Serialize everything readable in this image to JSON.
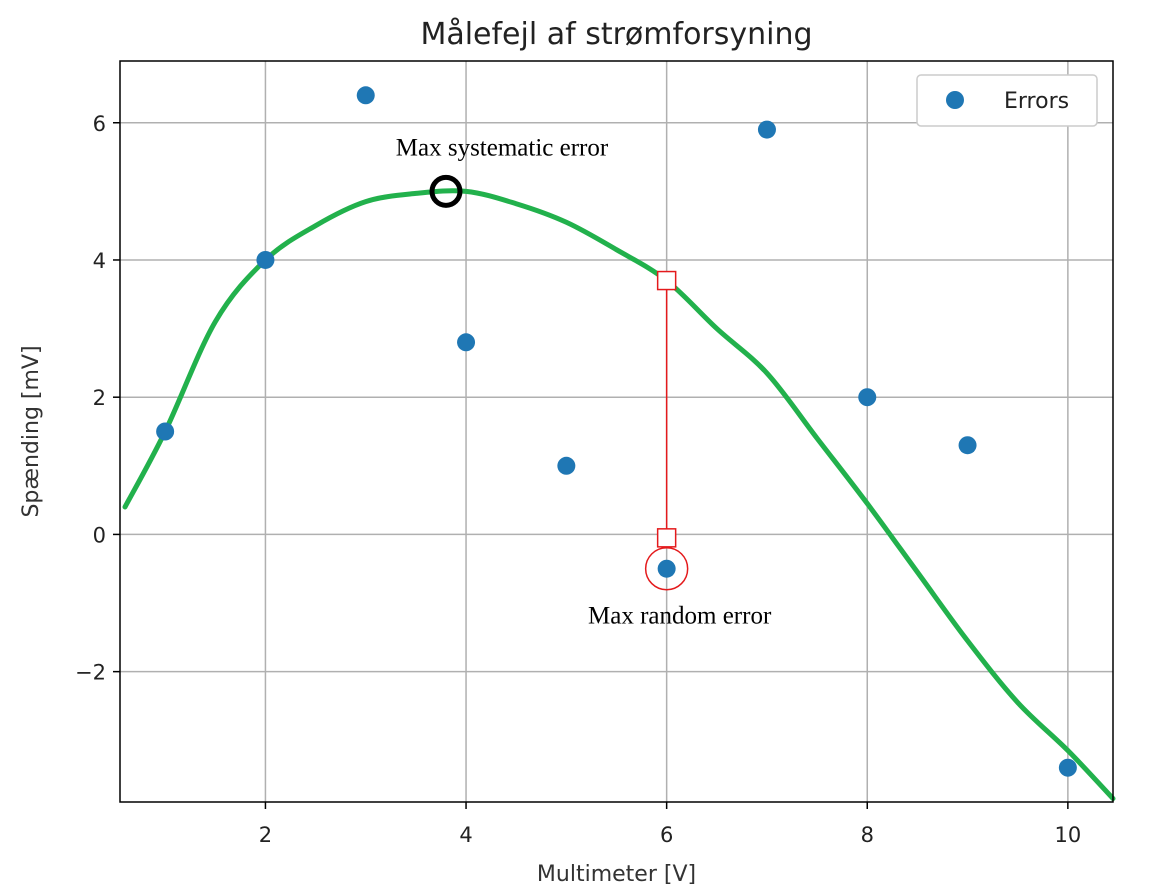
{
  "chart_data": {
    "type": "scatter",
    "title": "Målefejl af strømforsyning",
    "xlabel": "Multimeter [V]",
    "ylabel": "Spænding [mV]",
    "xlim": [
      0.55,
      10.45
    ],
    "ylim": [
      -3.9,
      6.9
    ],
    "xticks": [
      2,
      4,
      6,
      8,
      10
    ],
    "xtick_labels": [
      "2",
      "4",
      "6",
      "8",
      "10"
    ],
    "yticks": [
      -2,
      0,
      2,
      4,
      6
    ],
    "ytick_labels": [
      "−2",
      "0",
      "2",
      "4",
      "6"
    ],
    "grid": true,
    "legend": {
      "position": "top-right",
      "entries": [
        "Errors"
      ]
    },
    "series": [
      {
        "name": "Errors",
        "color": "#1f77b4",
        "x": [
          1,
          2,
          3,
          4,
          5,
          6,
          7,
          8,
          9,
          10
        ],
        "y": [
          1.5,
          4.0,
          6.4,
          2.8,
          1.0,
          -0.5,
          5.9,
          2.0,
          1.3,
          -3.4
        ]
      }
    ],
    "trend_curve": {
      "color": "#22b14c",
      "x": [
        0.6,
        1.0,
        1.5,
        2.0,
        2.5,
        3.0,
        3.5,
        4.0,
        4.5,
        5.0,
        5.5,
        6.0,
        6.5,
        7.0,
        7.5,
        8.0,
        8.5,
        9.0,
        9.5,
        10.0,
        10.45
      ],
      "y": [
        0.4,
        1.5,
        3.1,
        4.0,
        4.5,
        4.85,
        4.97,
        5.0,
        4.82,
        4.55,
        4.15,
        3.7,
        3.0,
        2.35,
        1.4,
        0.45,
        -0.55,
        -1.55,
        -2.45,
        -3.15,
        -3.85
      ]
    },
    "annotations": [
      {
        "text": "Max systematic error",
        "at": [
          3.8,
          5.0
        ],
        "color": "#000000"
      },
      {
        "text": "Max random error",
        "from": [
          6.0,
          3.7
        ],
        "to": [
          6.0,
          -0.05
        ],
        "circle_at": [
          6.0,
          -0.5
        ],
        "color": "#e41a1c"
      }
    ]
  }
}
